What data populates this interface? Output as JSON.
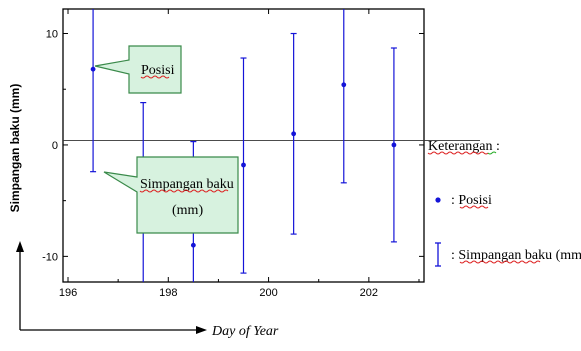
{
  "chart_data": {
    "type": "scatter",
    "xlabel": "Day of Year",
    "ylabel": "Simpangan baku (mm)",
    "xlim": [
      195.9,
      203.1
    ],
    "ylim": [
      -12.3,
      12.2
    ],
    "x_ticks": [
      196,
      198,
      200,
      202
    ],
    "y_ticks": [
      10,
      0,
      -10
    ],
    "reference_line_y": 0.4,
    "grid": false,
    "points": [
      {
        "x": 196.5,
        "y": 6.8,
        "low": -2.4,
        "high": 12.2
      },
      {
        "x": 197.5,
        "y": -6.2,
        "low": -12.3,
        "high": 3.8
      },
      {
        "x": 198.5,
        "y": -9.0,
        "low": -12.3,
        "high": 0.3
      },
      {
        "x": 199.5,
        "y": -1.8,
        "low": -11.5,
        "high": 7.8
      },
      {
        "x": 200.5,
        "y": 1.0,
        "low": -8.0,
        "high": 10.0
      },
      {
        "x": 201.5,
        "y": 5.4,
        "low": -3.4,
        "high": 12.2
      },
      {
        "x": 202.5,
        "y": 0.0,
        "low": -8.7,
        "high": 8.7
      }
    ],
    "series_color": "#1414d8"
  },
  "annotations": {
    "posisi": "Posisi",
    "simpangan_line1": "Simpangan baku",
    "simpangan_line2": "(mm)"
  },
  "legend": {
    "title": "Keterangan :",
    "posisi_label": ": Posisi",
    "errorbar_label": ": Simpangan baku (mm)"
  },
  "colors": {
    "callout_fill": "#d7f2df",
    "callout_stroke": "#3a8a4a"
  }
}
